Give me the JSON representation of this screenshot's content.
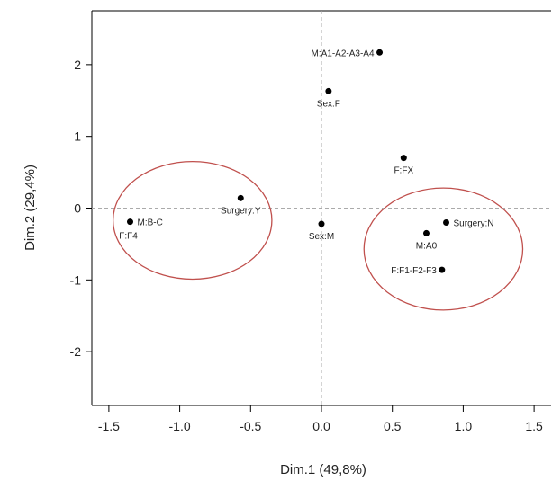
{
  "chart_data": {
    "type": "scatter",
    "xlabel": "Dim.1 (49,8%)",
    "ylabel": "Dim.2 (29,4%)",
    "xlim": [
      -1.62,
      1.62
    ],
    "ylim": [
      -2.75,
      2.75
    ],
    "x_ticks": [
      "-1.5",
      "-1.0",
      "-0.5",
      "0.0",
      "0.5",
      "1.0",
      "1.5"
    ],
    "y_ticks": [
      "-2",
      "-1",
      "0",
      "1",
      "2"
    ],
    "reference_lines": {
      "x": 0,
      "y": 0,
      "style": "dashed"
    },
    "grid": false,
    "points": [
      {
        "label": "M:A1-A2-A3-A4",
        "x": 0.41,
        "y": 2.17,
        "label_pos": "left"
      },
      {
        "label": "Sex:F",
        "x": 0.05,
        "y": 1.63,
        "label_pos": "below"
      },
      {
        "label": "F:FX",
        "x": 0.58,
        "y": 0.7,
        "label_pos": "below"
      },
      {
        "label": "Surgery:Y",
        "x": -0.57,
        "y": 0.14,
        "label_pos": "below"
      },
      {
        "label": "M:B-C",
        "x": -1.35,
        "y": -0.19,
        "label_pos": "right"
      },
      {
        "label": "F:F4",
        "x": -1.35,
        "y": -0.19,
        "label_pos": "below-left"
      },
      {
        "label": "Sex:M",
        "x": 0.0,
        "y": -0.22,
        "label_pos": "below"
      },
      {
        "label": "Surgery:N",
        "x": 0.88,
        "y": -0.2,
        "label_pos": "right"
      },
      {
        "label": "M:A0",
        "x": 0.74,
        "y": -0.35,
        "label_pos": "below"
      },
      {
        "label": "F:F1-F2-F3",
        "x": 0.85,
        "y": -0.86,
        "label_pos": "left"
      }
    ],
    "ellipses": [
      {
        "cx": -0.91,
        "cy": -0.17,
        "rx": 0.56,
        "ry": 0.82,
        "color": "#c0504d"
      },
      {
        "cx": 0.86,
        "cy": -0.57,
        "rx": 0.56,
        "ry": 0.85,
        "color": "#c0504d"
      }
    ],
    "point_color": "#000000",
    "ref_line_color": "#aaaaaa"
  }
}
